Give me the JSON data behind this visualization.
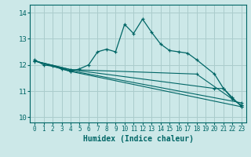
{
  "bg_color": "#cce8e8",
  "grid_color": "#aacccc",
  "line_color": "#006666",
  "xlabel": "Humidex (Indice chaleur)",
  "xlabel_fontsize": 7,
  "tick_fontsize": 6,
  "ylim": [
    9.8,
    14.3
  ],
  "xlim": [
    -0.5,
    23.5
  ],
  "yticks": [
    10,
    11,
    12,
    13,
    14
  ],
  "xticks": [
    0,
    1,
    2,
    3,
    4,
    5,
    6,
    7,
    8,
    9,
    10,
    11,
    12,
    13,
    14,
    15,
    16,
    17,
    18,
    19,
    20,
    21,
    22,
    23
  ],
  "lines": [
    {
      "x": [
        0,
        1,
        2,
        3,
        4,
        5,
        6,
        7,
        8,
        9,
        10,
        11,
        12,
        13,
        14,
        15,
        16,
        17,
        18,
        20,
        21,
        22,
        23
      ],
      "y": [
        12.2,
        12.0,
        11.95,
        11.85,
        11.75,
        11.85,
        12.0,
        12.5,
        12.6,
        12.5,
        13.55,
        13.2,
        13.75,
        13.25,
        12.8,
        12.55,
        12.5,
        12.45,
        12.2,
        11.65,
        11.1,
        10.7,
        10.45
      ]
    },
    {
      "x": [
        0,
        4,
        23
      ],
      "y": [
        12.15,
        11.75,
        10.4
      ]
    },
    {
      "x": [
        0,
        4,
        23
      ],
      "y": [
        12.15,
        11.78,
        10.55
      ]
    },
    {
      "x": [
        0,
        4,
        18,
        23
      ],
      "y": [
        12.15,
        11.82,
        11.65,
        10.45
      ]
    },
    {
      "x": [
        0,
        4,
        20,
        21,
        22,
        23
      ],
      "y": [
        12.15,
        11.82,
        11.1,
        11.1,
        10.75,
        10.4
      ]
    }
  ]
}
